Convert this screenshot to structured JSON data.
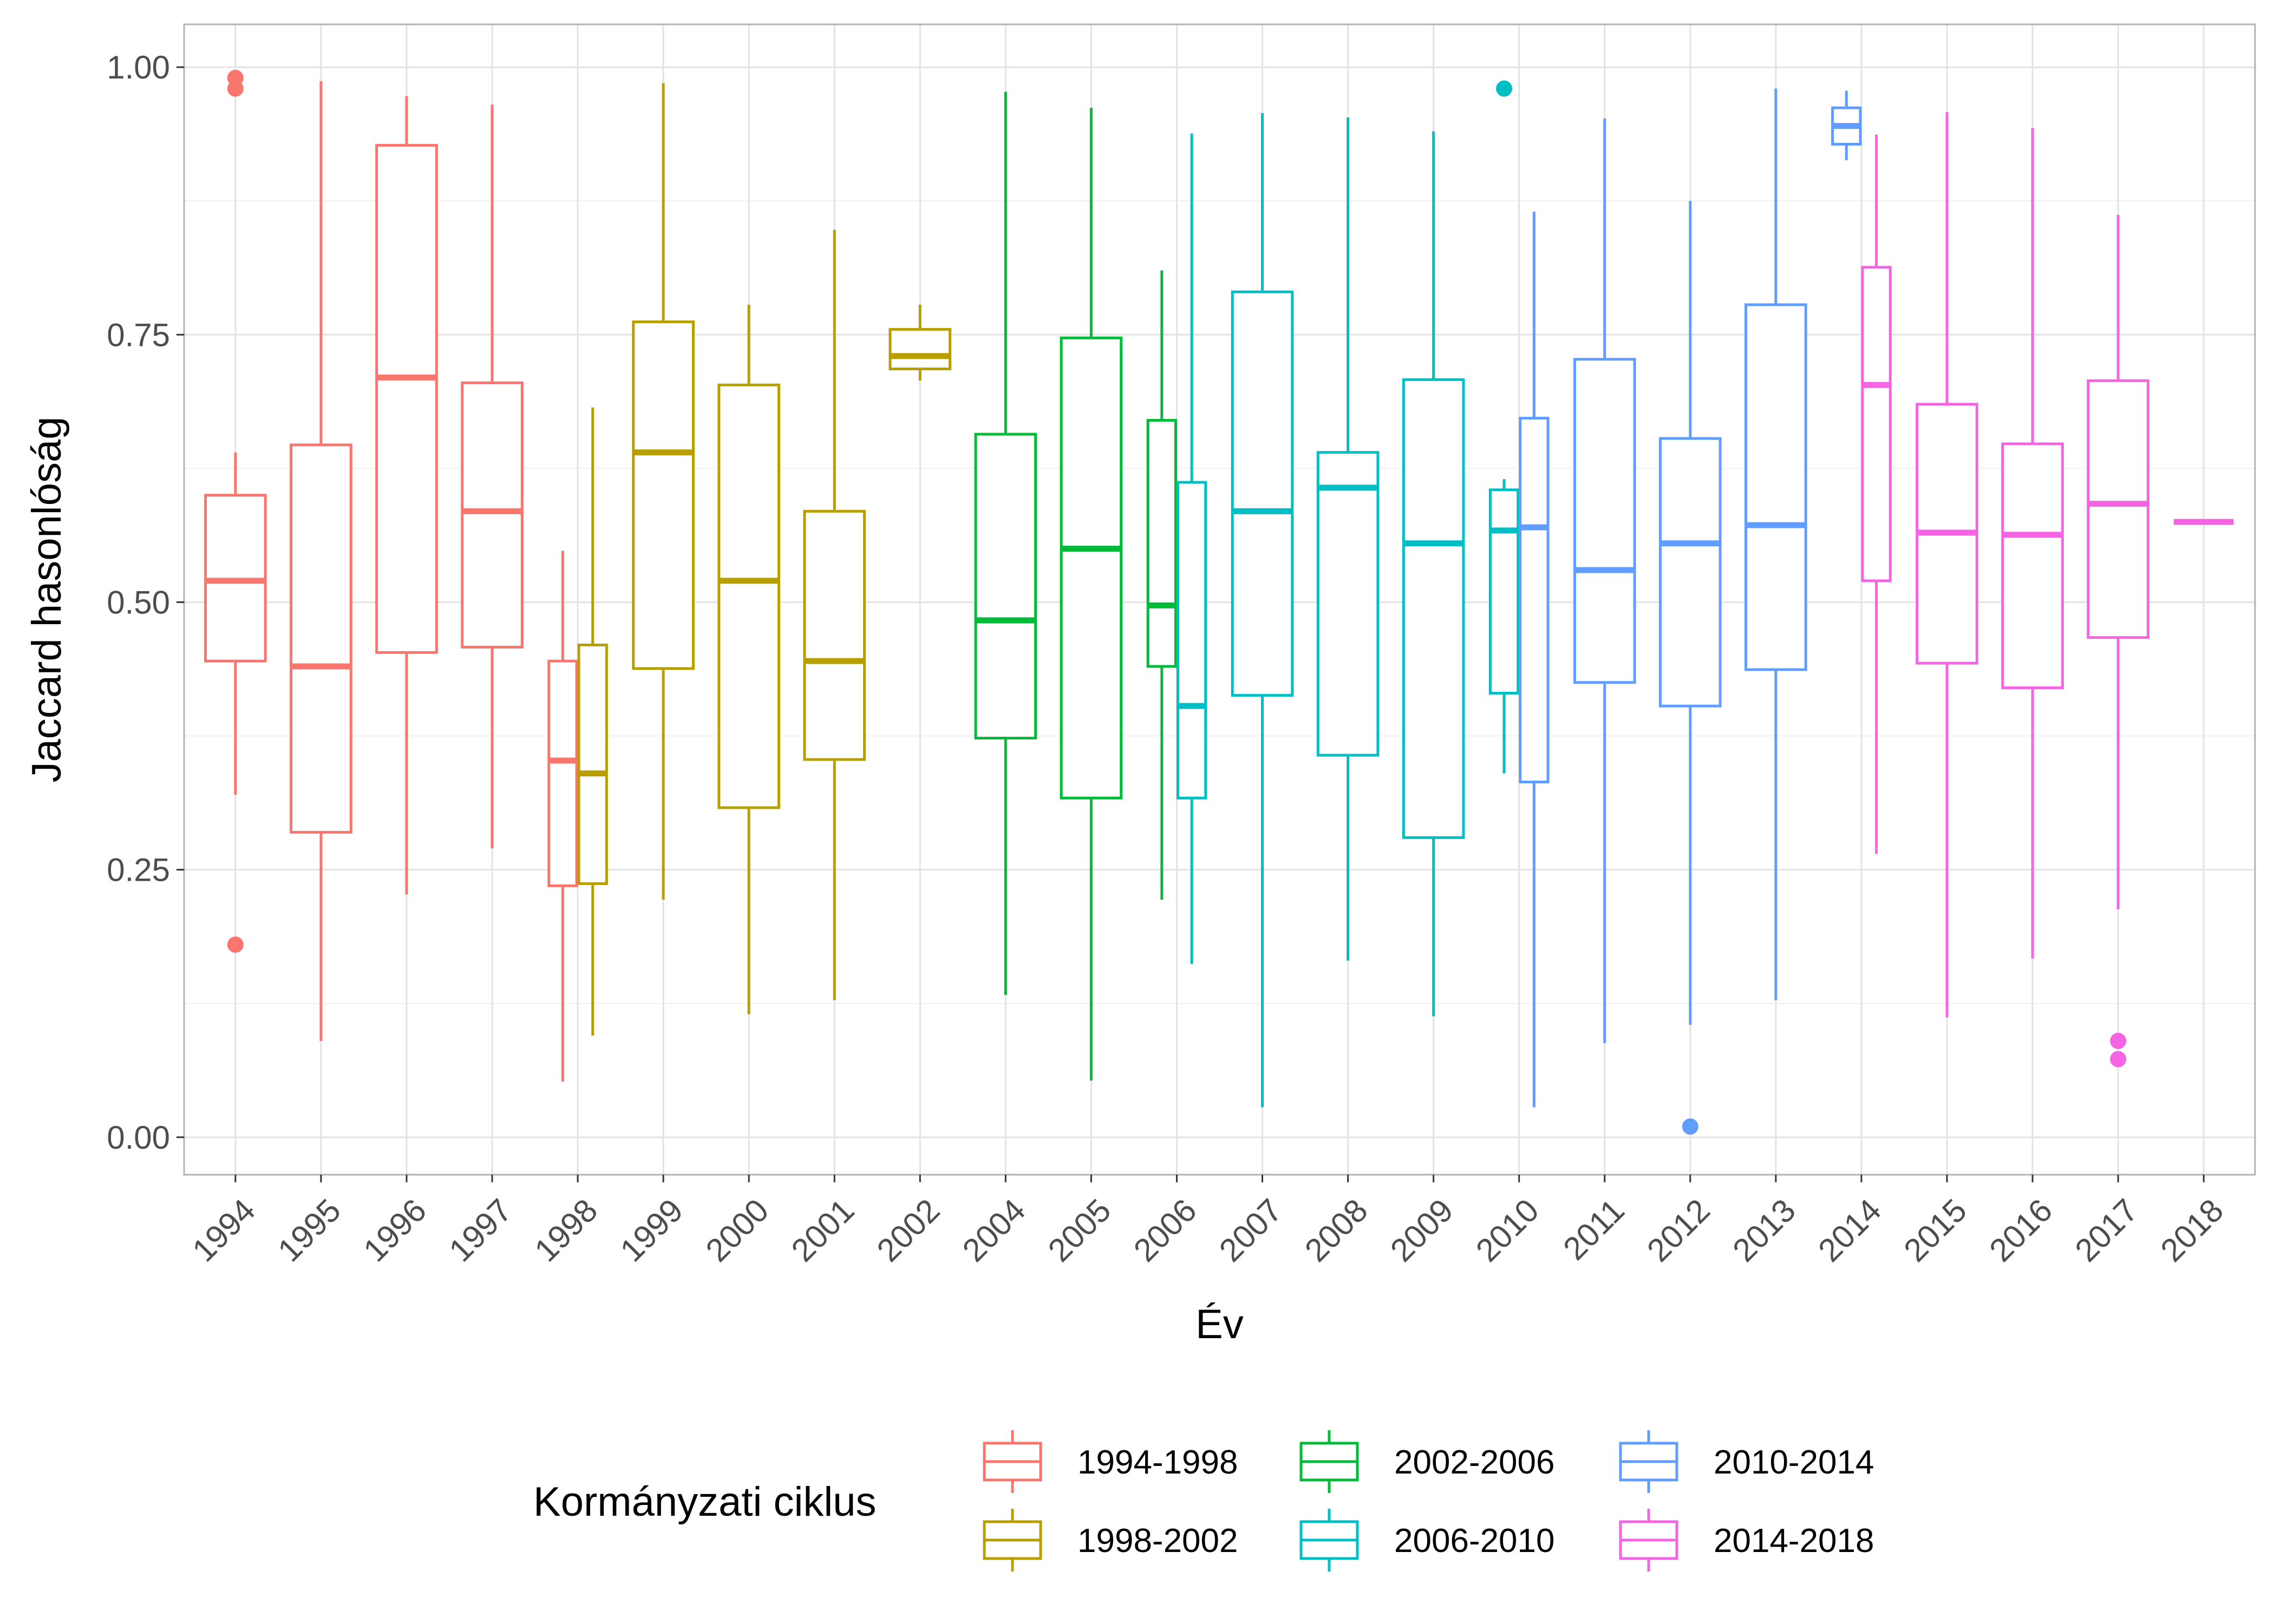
{
  "chart_data": {
    "type": "boxplot",
    "xlabel": "Év",
    "ylabel": "Jaccard hasonlóság",
    "ylim": [
      -0.035,
      1.04
    ],
    "yticks": [
      0.0,
      0.25,
      0.5,
      0.75,
      1.0
    ],
    "ytick_labels": [
      "0.00",
      "0.25",
      "0.50",
      "0.75",
      "1.00"
    ],
    "grid": true,
    "legend": {
      "title": "Kormányzati ciklus",
      "placement": "bottom",
      "entries": [
        {
          "label": "1994-1998",
          "color": "#F8766D"
        },
        {
          "label": "1998-2002",
          "color": "#B79F00"
        },
        {
          "label": "2002-2006",
          "color": "#00BA38"
        },
        {
          "label": "2006-2010",
          "color": "#00BFC4"
        },
        {
          "label": "2010-2014",
          "color": "#619CFF"
        },
        {
          "label": "2014-2018",
          "color": "#F564E3"
        }
      ]
    },
    "categories": [
      "1994",
      "1995",
      "1996",
      "1997",
      "1998",
      "1999",
      "2000",
      "2001",
      "2002",
      "2004",
      "2005",
      "2006",
      "2007",
      "2008",
      "2009",
      "2010",
      "2011",
      "2012",
      "2013",
      "2014",
      "2015",
      "2016",
      "2017",
      "2018"
    ],
    "boxes": [
      {
        "year": "1994",
        "cycle": "1994-1998",
        "dodge": 0,
        "min": 0.32,
        "q1": 0.445,
        "median": 0.52,
        "q3": 0.6,
        "max": 0.64,
        "outliers": [
          0.99,
          0.98,
          0.18
        ]
      },
      {
        "year": "1995",
        "cycle": "1994-1998",
        "dodge": 0,
        "min": 0.09,
        "q1": 0.285,
        "median": 0.44,
        "q3": 0.647,
        "max": 0.987,
        "outliers": []
      },
      {
        "year": "1996",
        "cycle": "1994-1998",
        "dodge": 0,
        "min": 0.227,
        "q1": 0.453,
        "median": 0.71,
        "q3": 0.927,
        "max": 0.973,
        "outliers": []
      },
      {
        "year": "1997",
        "cycle": "1994-1998",
        "dodge": 0,
        "min": 0.27,
        "q1": 0.458,
        "median": 0.585,
        "q3": 0.705,
        "max": 0.965,
        "outliers": []
      },
      {
        "year": "1998",
        "cycle": "1994-1998",
        "dodge": -1,
        "min": 0.052,
        "q1": 0.235,
        "median": 0.352,
        "q3": 0.445,
        "max": 0.548,
        "outliers": []
      },
      {
        "year": "1998",
        "cycle": "1998-2002",
        "dodge": 1,
        "min": 0.095,
        "q1": 0.237,
        "median": 0.34,
        "q3": 0.46,
        "max": 0.682,
        "outliers": []
      },
      {
        "year": "1999",
        "cycle": "1998-2002",
        "dodge": 0,
        "min": 0.222,
        "q1": 0.438,
        "median": 0.64,
        "q3": 0.762,
        "max": 0.985,
        "outliers": []
      },
      {
        "year": "2000",
        "cycle": "1998-2002",
        "dodge": 0,
        "min": 0.115,
        "q1": 0.308,
        "median": 0.52,
        "q3": 0.703,
        "max": 0.778,
        "outliers": []
      },
      {
        "year": "2001",
        "cycle": "1998-2002",
        "dodge": 0,
        "min": 0.128,
        "q1": 0.353,
        "median": 0.445,
        "q3": 0.585,
        "max": 0.848,
        "outliers": []
      },
      {
        "year": "2002",
        "cycle": "1998-2002",
        "dodge": 0,
        "min": 0.707,
        "q1": 0.718,
        "median": 0.73,
        "q3": 0.755,
        "max": 0.778,
        "outliers": []
      },
      {
        "year": "2004",
        "cycle": "2002-2006",
        "dodge": 0,
        "min": 0.133,
        "q1": 0.373,
        "median": 0.483,
        "q3": 0.657,
        "max": 0.977,
        "outliers": []
      },
      {
        "year": "2005",
        "cycle": "2002-2006",
        "dodge": 0,
        "min": 0.053,
        "q1": 0.317,
        "median": 0.55,
        "q3": 0.747,
        "max": 0.962,
        "outliers": []
      },
      {
        "year": "2006",
        "cycle": "2002-2006",
        "dodge": -1,
        "min": 0.222,
        "q1": 0.44,
        "median": 0.497,
        "q3": 0.67,
        "max": 0.81,
        "outliers": []
      },
      {
        "year": "2006",
        "cycle": "2006-2010",
        "dodge": 1,
        "min": 0.162,
        "q1": 0.317,
        "median": 0.403,
        "q3": 0.612,
        "max": 0.938,
        "outliers": []
      },
      {
        "year": "2007",
        "cycle": "2006-2010",
        "dodge": 0,
        "min": 0.028,
        "q1": 0.413,
        "median": 0.585,
        "q3": 0.79,
        "max": 0.957,
        "outliers": []
      },
      {
        "year": "2008",
        "cycle": "2006-2010",
        "dodge": 0,
        "min": 0.165,
        "q1": 0.357,
        "median": 0.607,
        "q3": 0.64,
        "max": 0.953,
        "outliers": []
      },
      {
        "year": "2009",
        "cycle": "2006-2010",
        "dodge": 0,
        "min": 0.113,
        "q1": 0.28,
        "median": 0.555,
        "q3": 0.708,
        "max": 0.94,
        "outliers": []
      },
      {
        "year": "2010",
        "cycle": "2006-2010",
        "dodge": -1,
        "min": 0.34,
        "q1": 0.415,
        "median": 0.567,
        "q3": 0.605,
        "max": 0.615,
        "outliers": [
          0.98
        ]
      },
      {
        "year": "2010",
        "cycle": "2010-2014",
        "dodge": 1,
        "min": 0.028,
        "q1": 0.332,
        "median": 0.57,
        "q3": 0.672,
        "max": 0.865,
        "outliers": []
      },
      {
        "year": "2011",
        "cycle": "2010-2014",
        "dodge": 0,
        "min": 0.088,
        "q1": 0.425,
        "median": 0.53,
        "q3": 0.727,
        "max": 0.952,
        "outliers": []
      },
      {
        "year": "2012",
        "cycle": "2010-2014",
        "dodge": 0,
        "min": 0.105,
        "q1": 0.403,
        "median": 0.555,
        "q3": 0.653,
        "max": 0.875,
        "outliers": [
          0.01
        ]
      },
      {
        "year": "2013",
        "cycle": "2010-2014",
        "dodge": 0,
        "min": 0.128,
        "q1": 0.437,
        "median": 0.572,
        "q3": 0.778,
        "max": 0.98,
        "outliers": []
      },
      {
        "year": "2014",
        "cycle": "2010-2014",
        "dodge": -1,
        "min": 0.913,
        "q1": 0.928,
        "median": 0.945,
        "q3": 0.962,
        "max": 0.978,
        "outliers": []
      },
      {
        "year": "2014",
        "cycle": "2014-2018",
        "dodge": 1,
        "min": 0.265,
        "q1": 0.52,
        "median": 0.703,
        "q3": 0.813,
        "max": 0.937,
        "outliers": []
      },
      {
        "year": "2015",
        "cycle": "2014-2018",
        "dodge": 0,
        "min": 0.112,
        "q1": 0.443,
        "median": 0.565,
        "q3": 0.685,
        "max": 0.958,
        "outliers": []
      },
      {
        "year": "2016",
        "cycle": "2014-2018",
        "dodge": 0,
        "min": 0.167,
        "q1": 0.42,
        "median": 0.563,
        "q3": 0.648,
        "max": 0.943,
        "outliers": []
      },
      {
        "year": "2017",
        "cycle": "2014-2018",
        "dodge": 0,
        "min": 0.213,
        "q1": 0.467,
        "median": 0.592,
        "q3": 0.707,
        "max": 0.862,
        "outliers": [
          0.09,
          0.073
        ]
      },
      {
        "year": "2018",
        "cycle": "2014-2018",
        "dodge": 0,
        "min": 0.575,
        "q1": 0.575,
        "median": 0.575,
        "q3": 0.575,
        "max": 0.575,
        "outliers": []
      }
    ]
  }
}
